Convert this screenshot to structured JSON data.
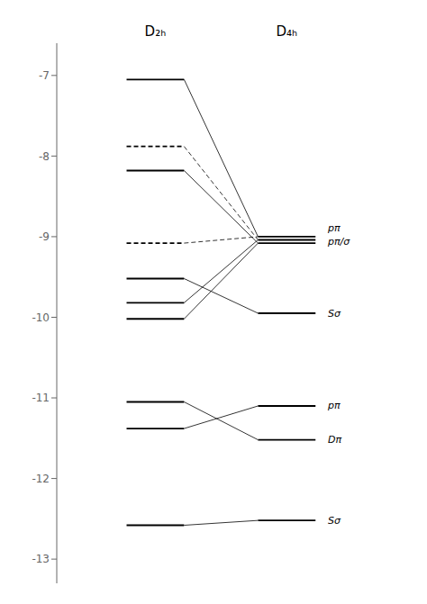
{
  "chart_data": {
    "type": "levels",
    "categories": [
      "D₂ₕ",
      "D₄ₕ"
    ],
    "levels": [
      {
        "values": [
          -7.05,
          -7.88,
          -8.18,
          -9.08,
          -9.52,
          -9.82,
          -10.02,
          -11.05,
          -11.38,
          -12.58
        ],
        "line_style": [
          "solid",
          "dashed",
          "solid",
          "dashed",
          "solid",
          "solid",
          "solid",
          "solid",
          "solid",
          "solid"
        ]
      },
      {
        "values": [
          -9.0,
          -9.04,
          -9.08,
          -9.95,
          -11.1,
          -11.52,
          -12.52
        ],
        "line_style": [
          "solid",
          "solid",
          "solid",
          "solid",
          "solid",
          "solid",
          "solid"
        ]
      }
    ],
    "connections": [
      {
        "from": -7.05,
        "to": -9.0,
        "line_style": "solid"
      },
      {
        "from": -7.88,
        "to": -9.04,
        "line_style": "dashed"
      },
      {
        "from": -8.18,
        "to": -9.08,
        "line_style": "solid"
      },
      {
        "from": -9.08,
        "to": -9.0,
        "line_style": "dashed"
      },
      {
        "from": -9.52,
        "to": -9.95,
        "line_style": "solid"
      },
      {
        "from": -9.82,
        "to": -9.04,
        "line_style": "solid"
      },
      {
        "from": -10.02,
        "to": -9.08,
        "line_style": "solid"
      },
      {
        "from": -11.05,
        "to": -11.52,
        "line_style": "solid"
      },
      {
        "from": -11.38,
        "to": -11.1,
        "line_style": "solid"
      },
      {
        "from": -12.58,
        "to": -12.52,
        "line_style": "solid"
      }
    ],
    "annotations": [
      {
        "y": -8.9,
        "text": "pπ"
      },
      {
        "y": -9.06,
        "text": "pπ/σ"
      },
      {
        "y": -9.95,
        "text": "Sσ"
      },
      {
        "y": -11.1,
        "text": "pπ"
      },
      {
        "y": -11.52,
        "text": "Dπ"
      },
      {
        "y": -12.52,
        "text": "Sσ"
      }
    ],
    "ylim": [
      -13.3,
      -6.6
    ],
    "yticks": [
      -7,
      -8,
      -9,
      -10,
      -11,
      -12,
      -13
    ],
    "grid": false,
    "color": "#000000"
  }
}
